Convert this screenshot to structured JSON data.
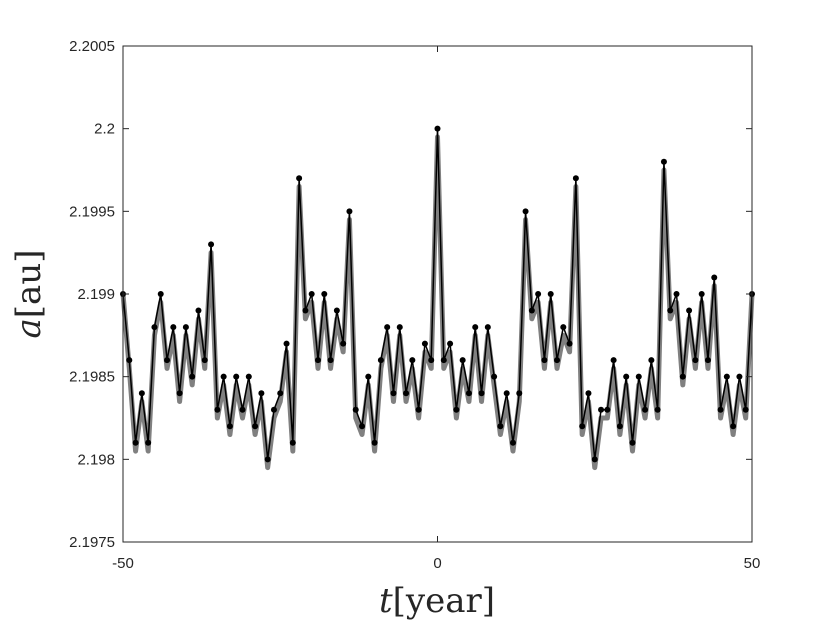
{
  "chart_data": {
    "type": "line",
    "xlabel": "t[year]",
    "xlabel_var": "t",
    "xlabel_unit": "[year]",
    "ylabel": "a[au]",
    "ylabel_var": "a",
    "ylabel_unit": "[au]",
    "xlim": [
      -50,
      50
    ],
    "ylim": [
      2.1975,
      2.2005
    ],
    "xticks": [
      -50,
      0,
      50
    ],
    "xtick_labels": [
      "-50",
      "0",
      "50"
    ],
    "yticks": [
      2.1975,
      2.198,
      2.1985,
      2.199,
      2.1995,
      2.2,
      2.2005
    ],
    "ytick_labels": [
      "2.1975",
      "2.198",
      "2.1985",
      "2.199",
      "2.1995",
      "2.2",
      "2.2005"
    ],
    "grid": false,
    "line_color": "#000000",
    "envelope_color": "#808080",
    "series": [
      {
        "style": "thick gray line",
        "x": [
          -50,
          -49,
          -48,
          -47,
          -46,
          -45,
          -44,
          -43,
          -42,
          -41,
          -40,
          -39,
          -38,
          -37,
          -36,
          -35,
          -34,
          -33,
          -32,
          -31,
          -30,
          -29,
          -28,
          -27,
          -26,
          -25,
          -24,
          -23,
          -22,
          -21,
          -20,
          -19,
          -18,
          -17,
          -16,
          -15,
          -14,
          -13,
          -12,
          -11,
          -10,
          -9,
          -8,
          -7,
          -6,
          -5,
          -4,
          -3,
          -2,
          -1,
          0,
          1,
          2,
          3,
          4,
          5,
          6,
          7,
          8,
          9,
          10,
          11,
          12,
          13,
          14,
          15,
          16,
          17,
          18,
          19,
          20,
          21,
          22,
          23,
          24,
          25,
          26,
          27,
          28,
          29,
          30,
          31,
          32,
          33,
          34,
          35,
          36,
          37,
          38,
          39,
          40,
          41,
          42,
          43,
          44,
          45,
          46,
          47,
          48,
          49,
          50
        ],
        "y": [
          2.199,
          2.1986,
          2.1981,
          2.1984,
          2.1981,
          2.1988,
          2.199,
          2.1986,
          2.1988,
          2.1984,
          2.1988,
          2.1985,
          2.1989,
          2.1986,
          2.1993,
          2.1983,
          2.1985,
          2.1982,
          2.1985,
          2.1983,
          2.1985,
          2.1982,
          2.1984,
          2.198,
          2.1983,
          2.1984,
          2.1987,
          2.1981,
          2.1997,
          2.1989,
          2.199,
          2.1986,
          2.199,
          2.1986,
          2.1989,
          2.1987,
          2.1995,
          2.1983,
          2.1982,
          2.1985,
          2.1981,
          2.1986,
          2.1988,
          2.1984,
          2.1988,
          2.1984,
          2.1986,
          2.1983,
          2.1987,
          2.1986,
          2.2,
          2.1986,
          2.1987,
          2.1983,
          2.1986,
          2.1984,
          2.1988,
          2.1984,
          2.1988,
          2.1985,
          2.1982,
          2.1984,
          2.1981,
          2.1984,
          2.1995,
          2.1989,
          2.199,
          2.1986,
          2.199,
          2.1986,
          2.1988,
          2.1987,
          2.1997,
          2.1982,
          2.1984,
          2.198,
          2.1983,
          2.1983,
          2.1986,
          2.1982,
          2.1985,
          2.1981,
          2.1985,
          2.1983,
          2.1986,
          2.1983,
          2.1998,
          2.1989,
          2.199,
          2.1985,
          2.1989,
          2.1986,
          2.199,
          2.1986,
          2.1991,
          2.1983,
          2.1985,
          2.1982,
          2.1985,
          2.1983,
          2.199
        ],
        "y_low": [
          2.199,
          2.1985,
          2.198,
          2.1983,
          2.198,
          2.1987,
          2.1989,
          2.1985,
          2.1987,
          2.1983,
          2.1987,
          2.1984,
          2.1988,
          2.1985,
          2.1992,
          2.1982,
          2.1984,
          2.1981,
          2.1984,
          2.1982,
          2.1984,
          2.1981,
          2.1983,
          2.1979,
          2.1982,
          2.1983,
          2.1986,
          2.198,
          2.1996,
          2.1988,
          2.1989,
          2.1985,
          2.1989,
          2.1985,
          2.1988,
          2.1986,
          2.1994,
          2.1982,
          2.1981,
          2.1984,
          2.198,
          2.1985,
          2.1987,
          2.1983,
          2.1987,
          2.1983,
          2.1985,
          2.1982,
          2.1986,
          2.1985,
          2.1999,
          2.1985,
          2.1986,
          2.1982,
          2.1985,
          2.1983,
          2.1987,
          2.1983,
          2.1987,
          2.1984,
          2.1981,
          2.1983,
          2.198,
          2.1983,
          2.1994,
          2.1988,
          2.1989,
          2.1985,
          2.1989,
          2.1985,
          2.1987,
          2.1986,
          2.1996,
          2.1981,
          2.1983,
          2.1979,
          2.1982,
          2.1982,
          2.1985,
          2.1981,
          2.1984,
          2.198,
          2.1984,
          2.1982,
          2.1985,
          2.1982,
          2.1997,
          2.1988,
          2.1989,
          2.1984,
          2.1988,
          2.1985,
          2.1989,
          2.1985,
          2.199,
          2.1982,
          2.1984,
          2.1981,
          2.1984,
          2.1982,
          2.199
        ]
      },
      {
        "style": "black line with dot markers",
        "x": [
          -50,
          -49,
          -48,
          -47,
          -46,
          -45,
          -44,
          -43,
          -42,
          -41,
          -40,
          -39,
          -38,
          -37,
          -36,
          -35,
          -34,
          -33,
          -32,
          -31,
          -30,
          -29,
          -28,
          -27,
          -26,
          -25,
          -24,
          -23,
          -22,
          -21,
          -20,
          -19,
          -18,
          -17,
          -16,
          -15,
          -14,
          -13,
          -12,
          -11,
          -10,
          -9,
          -8,
          -7,
          -6,
          -5,
          -4,
          -3,
          -2,
          -1,
          0,
          1,
          2,
          3,
          4,
          5,
          6,
          7,
          8,
          9,
          10,
          11,
          12,
          13,
          14,
          15,
          16,
          17,
          18,
          19,
          20,
          21,
          22,
          23,
          24,
          25,
          26,
          27,
          28,
          29,
          30,
          31,
          32,
          33,
          34,
          35,
          36,
          37,
          38,
          39,
          40,
          41,
          42,
          43,
          44,
          45,
          46,
          47,
          48,
          49,
          50
        ],
        "y": [
          2.199,
          2.1986,
          2.1981,
          2.1984,
          2.1981,
          2.1988,
          2.199,
          2.1986,
          2.1988,
          2.1984,
          2.1988,
          2.1985,
          2.1989,
          2.1986,
          2.1993,
          2.1983,
          2.1985,
          2.1982,
          2.1985,
          2.1983,
          2.1985,
          2.1982,
          2.1984,
          2.198,
          2.1983,
          2.1984,
          2.1987,
          2.1981,
          2.1997,
          2.1989,
          2.199,
          2.1986,
          2.199,
          2.1986,
          2.1989,
          2.1987,
          2.1995,
          2.1983,
          2.1982,
          2.1985,
          2.1981,
          2.1986,
          2.1988,
          2.1984,
          2.1988,
          2.1984,
          2.1986,
          2.1983,
          2.1987,
          2.1986,
          2.2,
          2.1986,
          2.1987,
          2.1983,
          2.1986,
          2.1984,
          2.1988,
          2.1984,
          2.1988,
          2.1985,
          2.1982,
          2.1984,
          2.1981,
          2.1984,
          2.1995,
          2.1989,
          2.199,
          2.1986,
          2.199,
          2.1986,
          2.1988,
          2.1987,
          2.1997,
          2.1982,
          2.1984,
          2.198,
          2.1983,
          2.1983,
          2.1986,
          2.1982,
          2.1985,
          2.1981,
          2.1985,
          2.1983,
          2.1986,
          2.1983,
          2.1998,
          2.1989,
          2.199,
          2.1985,
          2.1989,
          2.1986,
          2.199,
          2.1986,
          2.1991,
          2.1983,
          2.1985,
          2.1982,
          2.1985,
          2.1983,
          2.199
        ]
      }
    ]
  }
}
